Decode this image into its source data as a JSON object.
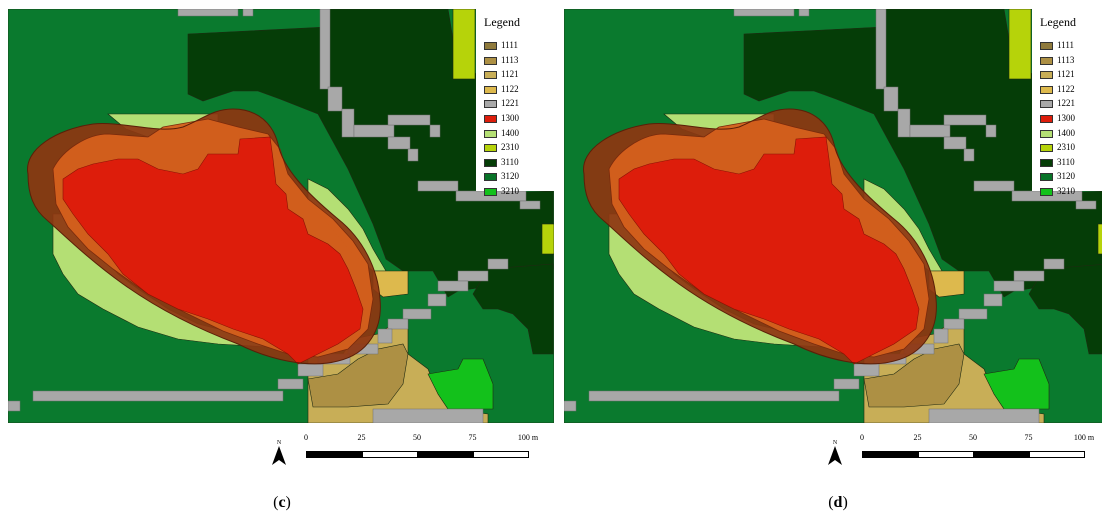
{
  "panels": [
    {
      "id": "c",
      "caption_open": "(",
      "caption_letter": "c",
      "caption_close": ")"
    },
    {
      "id": "d",
      "caption_open": "(",
      "caption_letter": "d",
      "caption_close": ")"
    }
  ],
  "legend": {
    "title": "Legend",
    "items": [
      {
        "code": "1111",
        "color": "#8f7a3c"
      },
      {
        "code": "1113",
        "color": "#ad9044"
      },
      {
        "code": "1121",
        "color": "#c8ae57"
      },
      {
        "code": "1122",
        "color": "#ddb94d"
      },
      {
        "code": "1221",
        "color": "#a8a8a8"
      },
      {
        "code": "1300",
        "color": "#dd1d0b"
      },
      {
        "code": "1400",
        "color": "#b4df74"
      },
      {
        "code": "2310",
        "color": "#b6d30a"
      },
      {
        "code": "3110",
        "color": "#053d07"
      },
      {
        "code": "3120",
        "color": "#087328"
      },
      {
        "code": "3210",
        "color": "#13c11b"
      }
    ]
  },
  "scale_bar": {
    "ticks": [
      "0",
      "25",
      "50",
      "75",
      "100 m"
    ]
  },
  "north_arrow": {
    "label": "N"
  },
  "colors": {
    "forest_bg": "#0a7a2e",
    "dark_forest": "#053d07",
    "road": "#a8a8a8",
    "red_zone": "#dd1d0b",
    "orange_zone": "#d5601c",
    "brown_zone": "#8e3511",
    "light_green": "#b4df74",
    "tan": "#c8ae57",
    "khaki": "#ad9044",
    "bright_green": "#13c11b",
    "yellow_green": "#b6d30a"
  }
}
